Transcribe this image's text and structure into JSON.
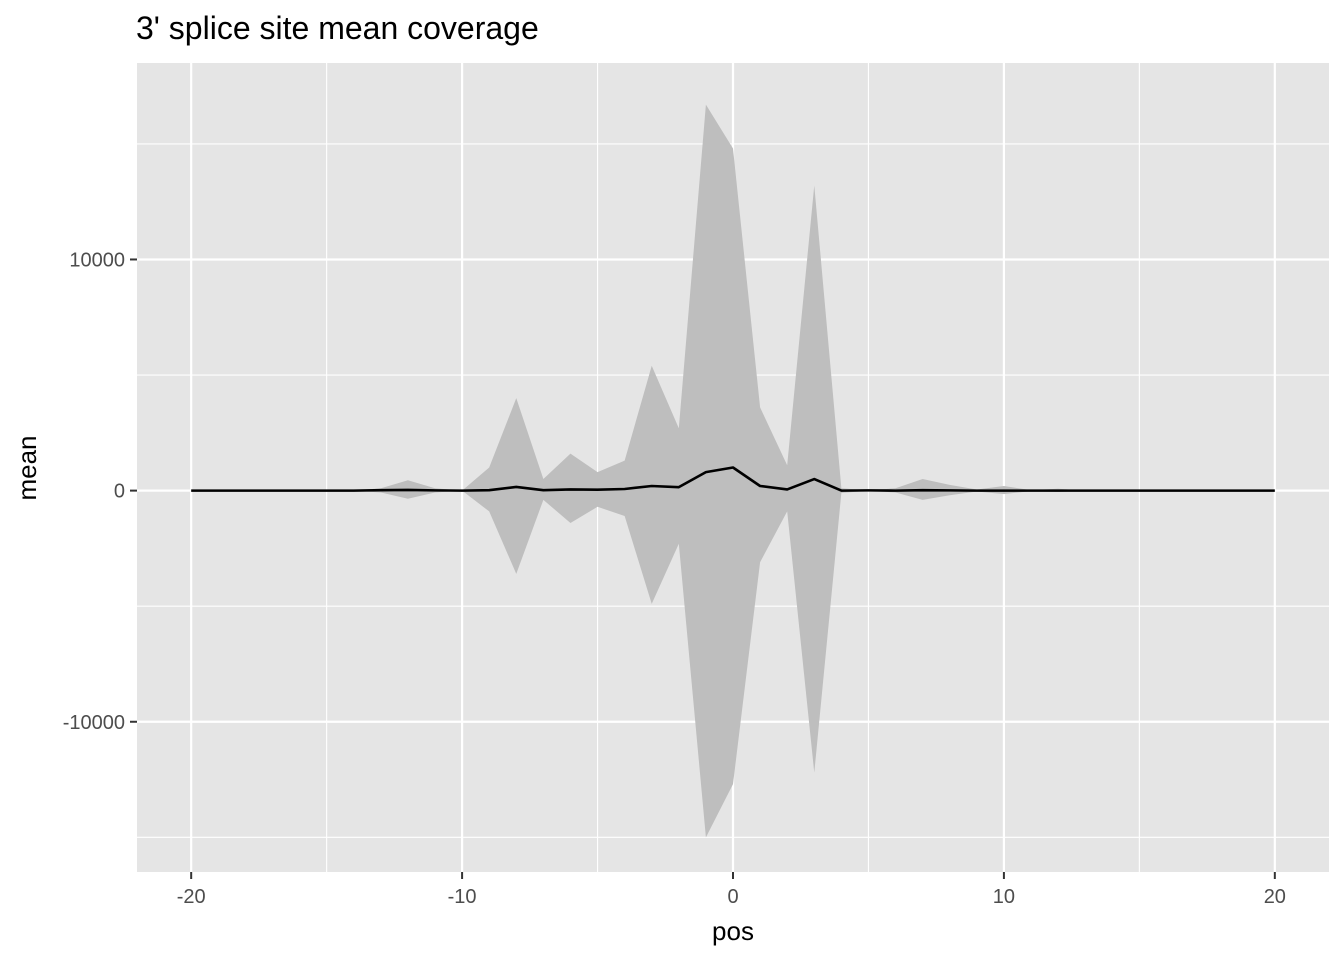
{
  "chart_data": {
    "type": "area",
    "title": "3' splice site mean coverage",
    "xlabel": "pos",
    "ylabel": "mean",
    "xlim": [
      -22,
      22
    ],
    "ylim": [
      -16500,
      18500
    ],
    "x_ticks": [
      -20,
      -10,
      0,
      10,
      20
    ],
    "x_tick_labels": [
      "-20",
      "-10",
      "0",
      "10",
      "20"
    ],
    "x_minor_ticks": [
      -15,
      -5,
      5,
      15
    ],
    "y_ticks": [
      -10000,
      0,
      10000
    ],
    "y_tick_labels": [
      "-10000",
      "0",
      "10000"
    ],
    "y_minor_ticks": [
      -15000,
      -5000,
      5000,
      15000
    ],
    "grid": true,
    "background": "#e5e5e5",
    "ribbon_color": "#bebebe",
    "line_color": "#000000",
    "x": [
      -20,
      -19,
      -18,
      -17,
      -16,
      -15,
      -14,
      -13,
      -12,
      -11,
      -10,
      -9,
      -8,
      -7,
      -6,
      -5,
      -4,
      -3,
      -2,
      -1,
      0,
      1,
      2,
      3,
      4,
      5,
      6,
      7,
      8,
      9,
      10,
      11,
      12,
      13,
      14,
      15,
      16,
      17,
      18,
      19,
      20
    ],
    "series": [
      {
        "role": "mean",
        "values": [
          0,
          0,
          0,
          0,
          0,
          0,
          0,
          20,
          30,
          10,
          0,
          20,
          160,
          20,
          50,
          40,
          70,
          200,
          150,
          800,
          1000,
          200,
          50,
          500,
          0,
          10,
          0,
          20,
          10,
          0,
          0,
          0,
          0,
          0,
          0,
          0,
          0,
          0,
          0,
          0,
          0
        ]
      },
      {
        "role": "upper",
        "values": [
          0,
          0,
          0,
          0,
          0,
          0,
          0,
          100,
          450,
          100,
          0,
          1000,
          4000,
          500,
          1600,
          800,
          1300,
          5400,
          2700,
          16700,
          14800,
          3600,
          1100,
          13200,
          100,
          10,
          100,
          500,
          250,
          50,
          200,
          20,
          80,
          0,
          0,
          0,
          0,
          0,
          0,
          0,
          0
        ]
      },
      {
        "role": "lower",
        "values": [
          0,
          0,
          0,
          0,
          0,
          0,
          0,
          -80,
          -350,
          -80,
          0,
          -900,
          -3600,
          -400,
          -1400,
          -700,
          -1100,
          -4900,
          -2300,
          -15000,
          -12700,
          -3100,
          -900,
          -12200,
          -100,
          -10,
          -80,
          -400,
          -200,
          -40,
          -150,
          -20,
          -60,
          0,
          0,
          0,
          0,
          0,
          0,
          0,
          0
        ]
      }
    ]
  }
}
